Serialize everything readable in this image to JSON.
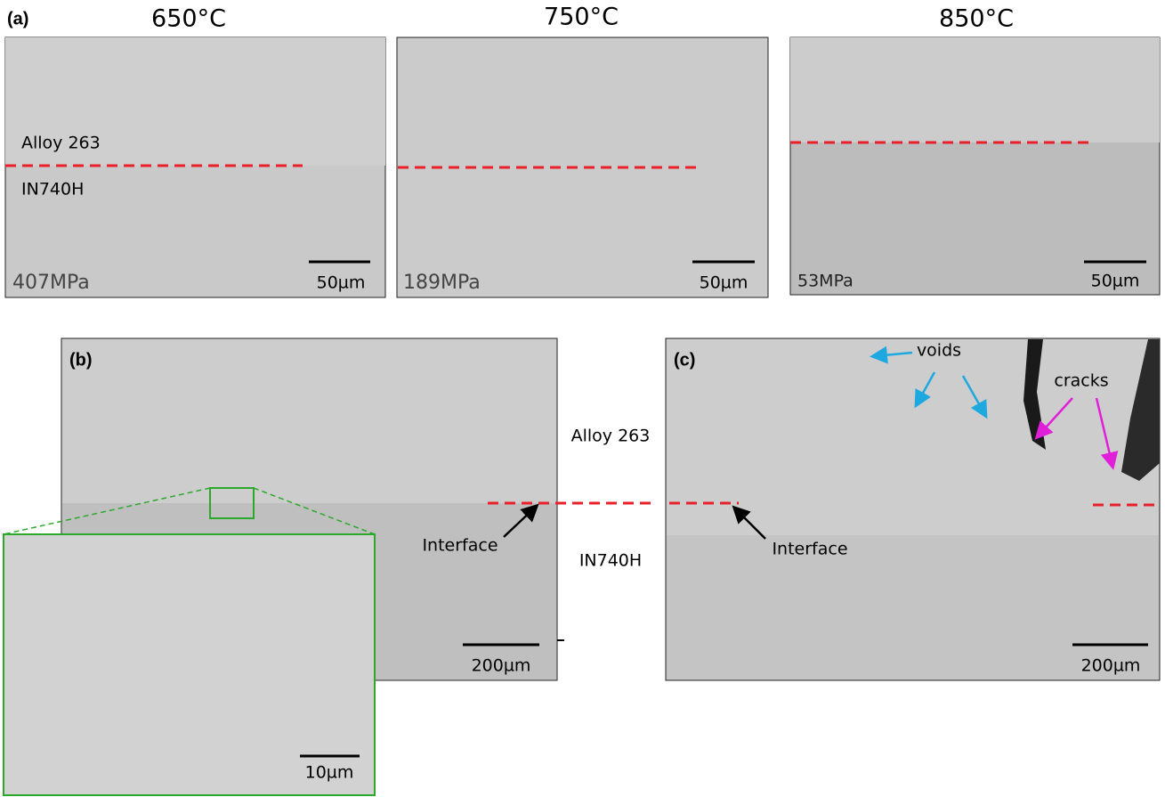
{
  "panel_a": {
    "label": "(a)",
    "panels": [
      {
        "temperature": "650°C",
        "top_label": "Alloy 263",
        "bottom_label": "IN740H",
        "stress": "407MPa",
        "scale": "50µm"
      },
      {
        "temperature": "750°C",
        "stress": "189MPa",
        "scale": "50µm"
      },
      {
        "temperature": "850°C",
        "stress": "53MPa",
        "scale": "50µm"
      }
    ]
  },
  "panel_b": {
    "label": "(b)",
    "scale": "200µm",
    "inset_scale": "10µm"
  },
  "middle": {
    "top_label": "Alloy 263",
    "bottom_label": "IN740H",
    "interface": "Interface"
  },
  "panel_c": {
    "label": "(c)",
    "voids": "voids",
    "cracks": "cracks",
    "interface": "Interface",
    "scale": "200µm"
  }
}
